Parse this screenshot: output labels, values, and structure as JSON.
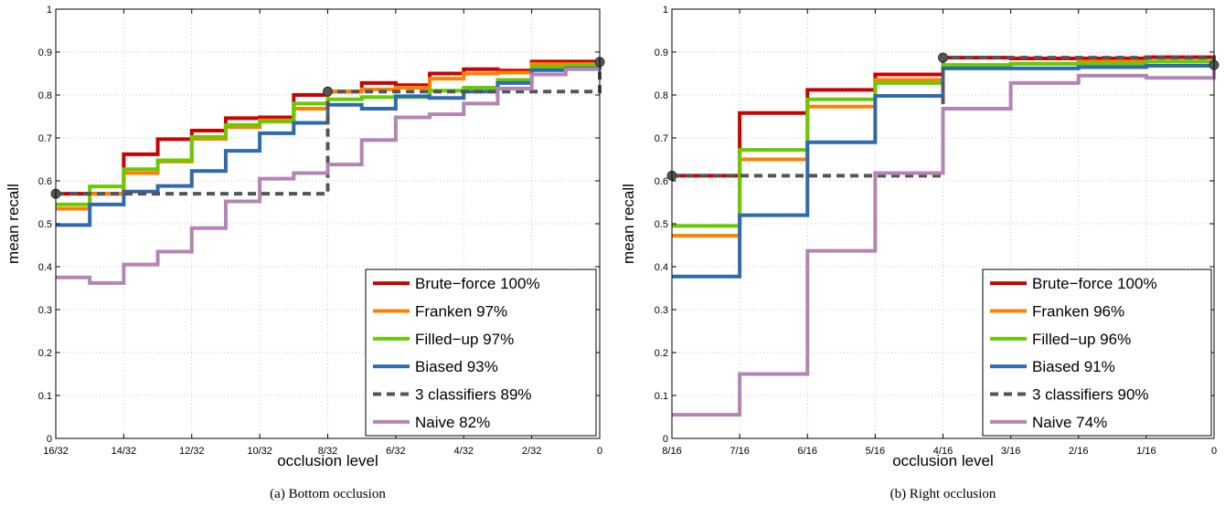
{
  "chart_data": [
    {
      "type": "line",
      "caption": "(a) Bottom occlusion",
      "xlabel": "occlusion level",
      "ylabel": "mean recall",
      "ylim": [
        0,
        1
      ],
      "yticks": [
        "0",
        "0.1",
        "0.2",
        "0.3",
        "0.4",
        "0.5",
        "0.6",
        "0.7",
        "0.8",
        "0.9",
        "1"
      ],
      "xticks": [
        "16/32",
        "14/32",
        "12/32",
        "10/32",
        "8/32",
        "6/32",
        "4/32",
        "2/32",
        "0"
      ],
      "x_positions": [
        0,
        1,
        2,
        3,
        4,
        5,
        6,
        7,
        8,
        9,
        10,
        11,
        12,
        13,
        14,
        15,
        16
      ],
      "grid": true,
      "legend_position": "bottom-right",
      "markers": [
        {
          "x": 0,
          "y": 0.57
        },
        {
          "x": 8,
          "y": 0.808
        },
        {
          "x": 16,
          "y": 0.877
        }
      ],
      "series": [
        {
          "name": "Brute−force 100%",
          "color": "#cc0000",
          "dashed": false,
          "values": [
            0.57,
            0.57,
            0.662,
            0.697,
            0.717,
            0.746,
            0.748,
            0.8,
            0.808,
            0.828,
            0.823,
            0.85,
            0.86,
            0.857,
            0.878,
            0.878,
            0.877
          ]
        },
        {
          "name": "Franken 97%",
          "color": "#ff8000",
          "dashed": false,
          "values": [
            0.535,
            0.57,
            0.618,
            0.645,
            0.698,
            0.725,
            0.741,
            0.768,
            0.808,
            0.813,
            0.817,
            0.838,
            0.85,
            0.852,
            0.872,
            0.872,
            0.877
          ]
        },
        {
          "name": "Filled−up 97%",
          "color": "#66cc00",
          "dashed": false,
          "values": [
            0.545,
            0.587,
            0.627,
            0.648,
            0.702,
            0.73,
            0.738,
            0.78,
            0.79,
            0.795,
            0.795,
            0.81,
            0.817,
            0.835,
            0.865,
            0.868,
            0.877
          ]
        },
        {
          "name": "Biased 93%",
          "color": "#2e6aad",
          "dashed": false,
          "values": [
            0.497,
            0.545,
            0.575,
            0.588,
            0.623,
            0.67,
            0.711,
            0.735,
            0.777,
            0.768,
            0.797,
            0.793,
            0.808,
            0.828,
            0.858,
            0.862,
            0.877
          ]
        },
        {
          "name": "3 classifiers 89%",
          "color": "#555555",
          "dashed": true,
          "values": [
            0.57,
            0.57,
            0.57,
            0.57,
            0.57,
            0.57,
            0.57,
            0.57,
            0.808,
            0.808,
            0.808,
            0.808,
            0.808,
            0.808,
            0.808,
            0.808,
            0.877
          ]
        },
        {
          "name": "Naive 82%",
          "color": "#b385b3",
          "dashed": false,
          "values": [
            0.375,
            0.362,
            0.405,
            0.435,
            0.49,
            0.552,
            0.605,
            0.618,
            0.638,
            0.695,
            0.748,
            0.755,
            0.78,
            0.815,
            0.848,
            0.86,
            0.86
          ]
        }
      ]
    },
    {
      "type": "line",
      "caption": "(b) Right occlusion",
      "xlabel": "occlusion level",
      "ylabel": "mean recall",
      "ylim": [
        0,
        1
      ],
      "yticks": [
        "0",
        "0.1",
        "0.2",
        "0.3",
        "0.4",
        "0.5",
        "0.6",
        "0.7",
        "0.8",
        "0.9",
        "1"
      ],
      "xticks": [
        "8/16",
        "7/16",
        "6/16",
        "5/16",
        "4/16",
        "3/16",
        "2/16",
        "1/16",
        "0"
      ],
      "x_positions": [
        0,
        1,
        2,
        3,
        4,
        5,
        6,
        7,
        8
      ],
      "grid": true,
      "legend_position": "bottom-right",
      "markers": [
        {
          "x": 0,
          "y": 0.612
        },
        {
          "x": 4,
          "y": 0.887
        },
        {
          "x": 8,
          "y": 0.87
        }
      ],
      "series": [
        {
          "name": "Brute−force 100%",
          "color": "#cc0000",
          "dashed": false,
          "values": [
            0.612,
            0.758,
            0.812,
            0.848,
            0.887,
            0.885,
            0.885,
            0.888,
            0.87
          ]
        },
        {
          "name": "Franken 96%",
          "color": "#ff8000",
          "dashed": false,
          "values": [
            0.472,
            0.65,
            0.773,
            0.835,
            0.866,
            0.873,
            0.878,
            0.878,
            0.87
          ]
        },
        {
          "name": "Filled−up 96%",
          "color": "#66cc00",
          "dashed": false,
          "values": [
            0.495,
            0.672,
            0.79,
            0.828,
            0.87,
            0.873,
            0.873,
            0.878,
            0.87
          ]
        },
        {
          "name": "Biased 91%",
          "color": "#2e6aad",
          "dashed": false,
          "values": [
            0.377,
            0.52,
            0.69,
            0.798,
            0.862,
            0.862,
            0.865,
            0.868,
            0.87
          ]
        },
        {
          "name": "3 classifiers 90%",
          "color": "#555555",
          "dashed": true,
          "values": [
            0.612,
            0.612,
            0.612,
            0.612,
            0.887,
            0.887,
            0.887,
            0.887,
            0.87
          ]
        },
        {
          "name": "Naive 74%",
          "color": "#b385b3",
          "dashed": false,
          "values": [
            0.055,
            0.15,
            0.437,
            0.618,
            0.768,
            0.828,
            0.845,
            0.84,
            0.87
          ]
        }
      ]
    }
  ]
}
